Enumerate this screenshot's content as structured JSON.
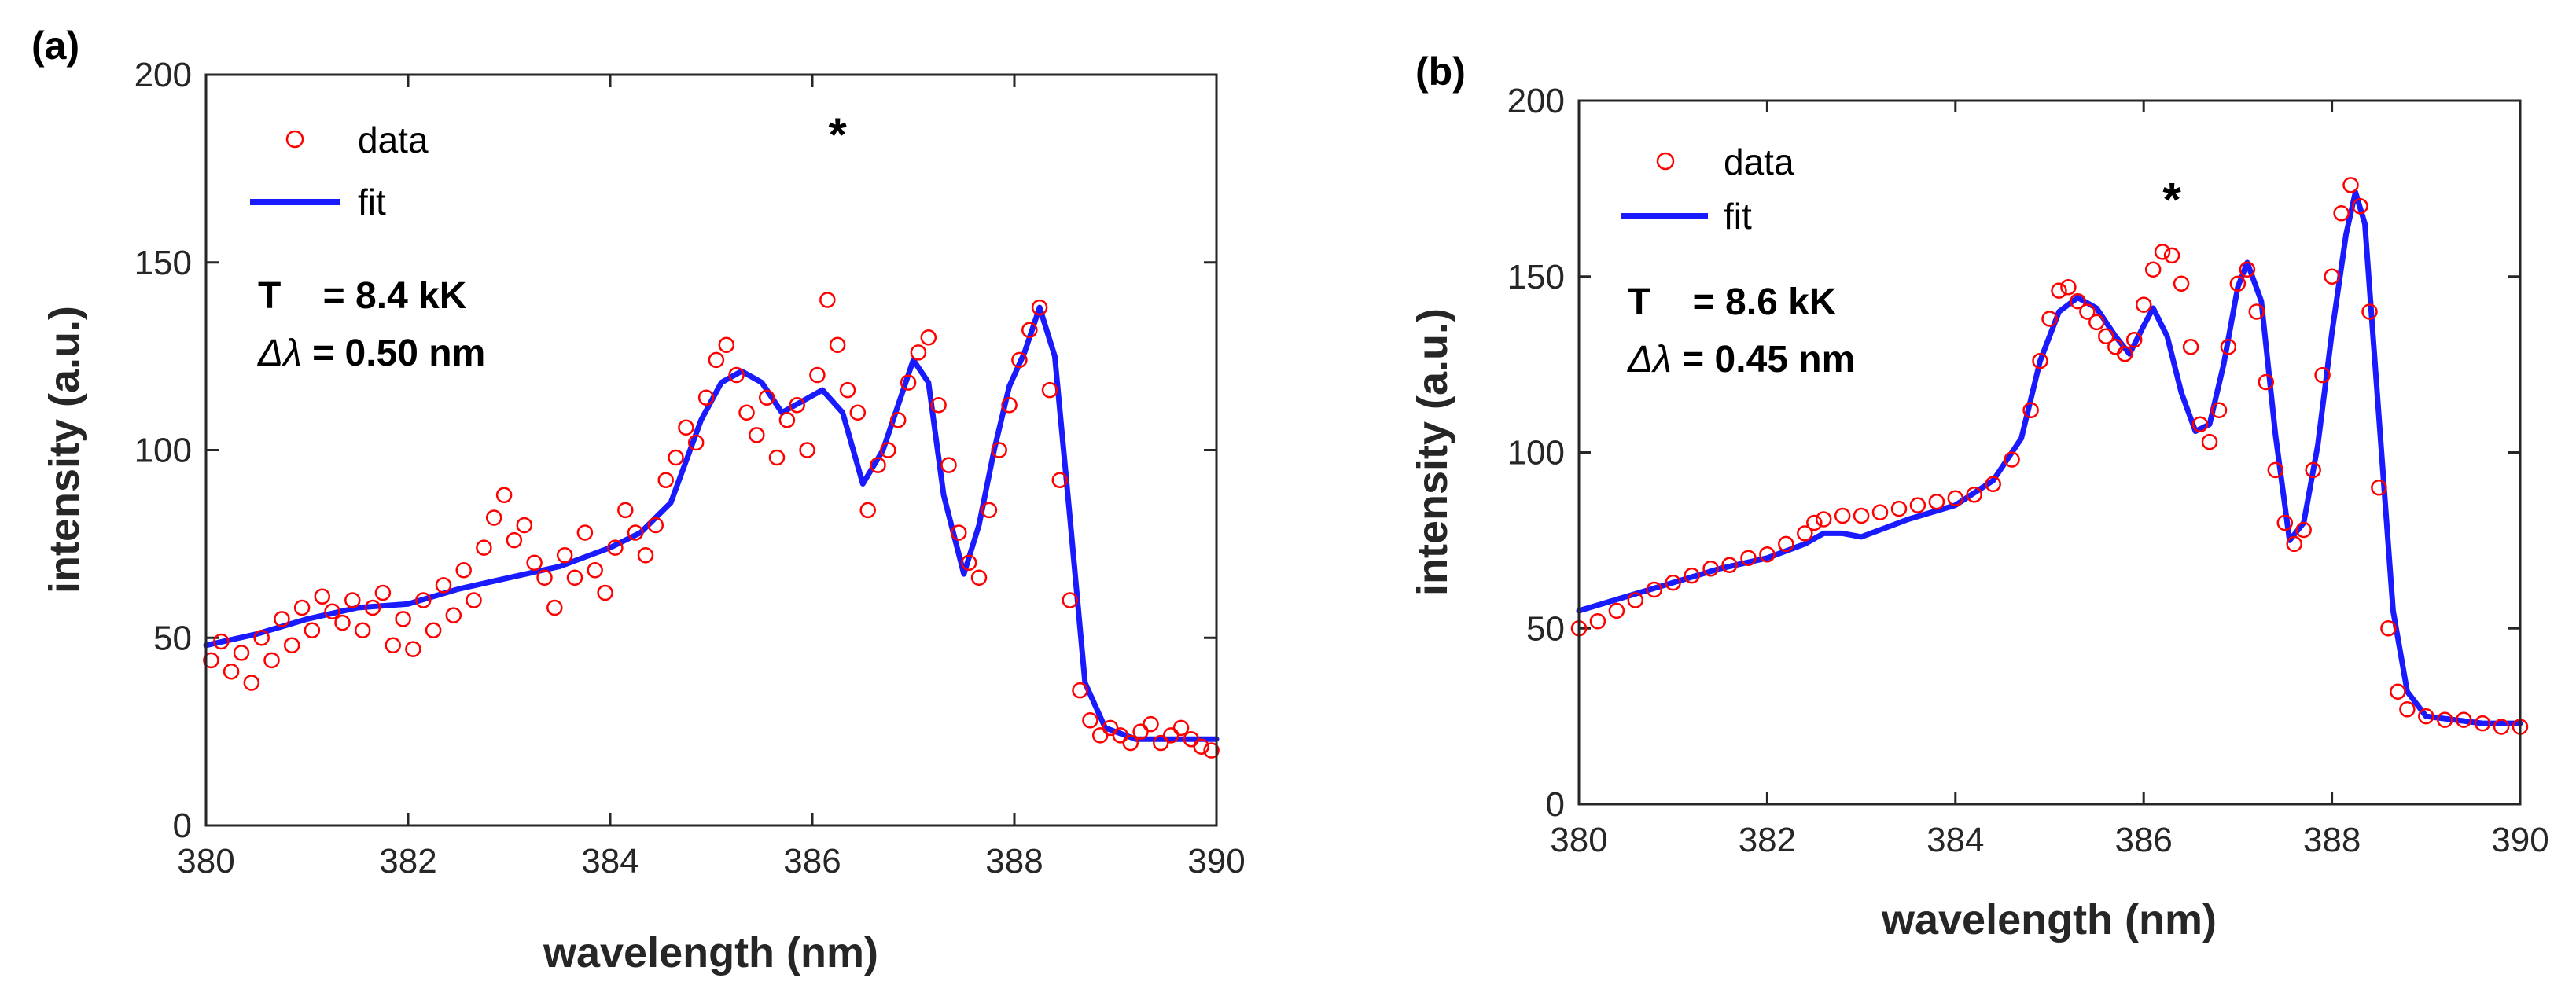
{
  "chart_data": [
    {
      "panel_label": "(a)",
      "type": "scatter",
      "xlabel": "wavelength (nm)",
      "ylabel": "intensity (a.u.)",
      "xlim": [
        380,
        390
      ],
      "ylim": [
        0,
        200
      ],
      "xticks": [
        380,
        382,
        384,
        386,
        388,
        390
      ],
      "yticks": [
        0,
        50,
        100,
        150,
        200
      ],
      "legend": {
        "location": "top-left",
        "entries": [
          "data",
          "fit"
        ]
      },
      "annotations": {
        "temperature": "T    = 8.4 kK",
        "width_prefix": "Δλ",
        "width_value": " = 0.50 nm",
        "marker": "*",
        "marker_x": 386.25,
        "marker_y": 186
      },
      "fit_curve": {
        "x": [
          380,
          380.5,
          381,
          381.5,
          382,
          382.5,
          383,
          383.5,
          384,
          384.3,
          384.6,
          384.9,
          385.1,
          385.3,
          385.5,
          385.7,
          385.9,
          386.1,
          386.3,
          386.5,
          386.7,
          386.85,
          387.0,
          387.15,
          387.3,
          387.5,
          387.65,
          387.8,
          387.95,
          388.1,
          388.25,
          388.4,
          388.55,
          388.7,
          388.9,
          389.2,
          389.6,
          390
        ],
        "y": [
          48,
          51,
          55,
          58,
          59,
          63,
          66,
          69,
          74,
          78,
          86,
          108,
          118,
          121,
          118,
          110,
          113,
          116,
          110,
          91,
          100,
          112,
          124,
          118,
          88,
          67,
          80,
          100,
          117,
          126,
          138,
          125,
          82,
          38,
          26,
          23,
          23,
          23
        ]
      },
      "series": [
        {
          "name": "data",
          "x": [
            380.05,
            380.15,
            380.25,
            380.35,
            380.45,
            380.55,
            380.65,
            380.75,
            380.85,
            380.95,
            381.05,
            381.15,
            381.25,
            381.35,
            381.45,
            381.55,
            381.65,
            381.75,
            381.85,
            381.95,
            382.05,
            382.15,
            382.25,
            382.35,
            382.45,
            382.55,
            382.65,
            382.75,
            382.85,
            382.95,
            383.05,
            383.15,
            383.25,
            383.35,
            383.45,
            383.55,
            383.65,
            383.75,
            383.85,
            383.95,
            384.05,
            384.15,
            384.25,
            384.35,
            384.45,
            384.55,
            384.65,
            384.75,
            384.85,
            384.95,
            385.05,
            385.15,
            385.25,
            385.35,
            385.45,
            385.55,
            385.65,
            385.75,
            385.85,
            385.95,
            386.05,
            386.15,
            386.25,
            386.35,
            386.45,
            386.55,
            386.65,
            386.75,
            386.85,
            386.95,
            387.05,
            387.15,
            387.25,
            387.35,
            387.45,
            387.55,
            387.65,
            387.75,
            387.85,
            387.95,
            388.05,
            388.15,
            388.25,
            388.35,
            388.45,
            388.55,
            388.65,
            388.75,
            388.85,
            388.95,
            389.05,
            389.15,
            389.25,
            389.35,
            389.45,
            389.55,
            389.65,
            389.75,
            389.85,
            389.95
          ],
          "y": [
            44,
            49,
            41,
            46,
            38,
            50,
            44,
            55,
            48,
            58,
            52,
            61,
            57,
            54,
            60,
            52,
            58,
            62,
            48,
            55,
            47,
            60,
            52,
            64,
            56,
            68,
            60,
            74,
            82,
            88,
            76,
            80,
            70,
            66,
            58,
            72,
            66,
            78,
            68,
            62,
            74,
            84,
            78,
            72,
            80,
            92,
            98,
            106,
            102,
            114,
            124,
            128,
            120,
            110,
            104,
            114,
            98,
            108,
            112,
            100,
            120,
            140,
            128,
            116,
            110,
            84,
            96,
            100,
            108,
            118,
            126,
            130,
            112,
            96,
            78,
            70,
            66,
            84,
            100,
            112,
            124,
            132,
            138,
            116,
            92,
            60,
            36,
            28,
            24,
            26,
            24,
            22,
            25,
            27,
            22,
            24,
            26,
            23,
            21,
            20
          ]
        },
        {
          "name": "fit"
        }
      ]
    },
    {
      "panel_label": "(b)",
      "type": "scatter",
      "xlabel": "wavelength (nm)",
      "ylabel": "intensity (a.u.)",
      "xlim": [
        380,
        390
      ],
      "ylim": [
        0,
        200
      ],
      "xticks": [
        380,
        382,
        384,
        386,
        388,
        390
      ],
      "yticks": [
        0,
        50,
        100,
        150,
        200
      ],
      "legend": {
        "location": "top-left",
        "entries": [
          "data",
          "fit"
        ]
      },
      "annotations": {
        "temperature": "T    = 8.6 kK",
        "width_prefix": "Δλ",
        "width_value": " = 0.45 nm",
        "marker": "*",
        "marker_x": 386.3,
        "marker_y": 174
      },
      "fit_curve": {
        "x": [
          380,
          380.5,
          381,
          381.5,
          382,
          382.4,
          382.6,
          382.8,
          383.0,
          383.5,
          384,
          384.4,
          384.7,
          384.9,
          385.1,
          385.3,
          385.5,
          385.7,
          385.85,
          386.0,
          386.1,
          386.25,
          386.4,
          386.55,
          386.7,
          386.85,
          387.0,
          387.1,
          387.25,
          387.4,
          387.55,
          387.7,
          387.85,
          388.0,
          388.15,
          388.25,
          388.35,
          388.5,
          388.65,
          388.8,
          389.0,
          389.3,
          389.6,
          390
        ],
        "y": [
          55,
          59,
          63,
          67,
          70,
          74,
          77,
          77,
          76,
          81,
          85,
          92,
          104,
          126,
          140,
          144,
          141,
          133,
          128,
          136,
          141,
          133,
          117,
          106,
          108,
          125,
          147,
          154,
          143,
          105,
          75,
          80,
          102,
          134,
          162,
          174,
          165,
          110,
          55,
          32,
          25,
          24,
          23,
          23
        ]
      },
      "series": [
        {
          "name": "data",
          "x": [
            380.0,
            380.2,
            380.4,
            380.6,
            380.8,
            381.0,
            381.2,
            381.4,
            381.6,
            381.8,
            382.0,
            382.2,
            382.4,
            382.5,
            382.6,
            382.8,
            383.0,
            383.2,
            383.4,
            383.6,
            383.8,
            384.0,
            384.2,
            384.4,
            384.6,
            384.8,
            384.9,
            385.0,
            385.1,
            385.2,
            385.3,
            385.4,
            385.5,
            385.6,
            385.7,
            385.8,
            385.9,
            386.0,
            386.1,
            386.2,
            386.3,
            386.4,
            386.5,
            386.6,
            386.7,
            386.8,
            386.9,
            387.0,
            387.1,
            387.2,
            387.3,
            387.4,
            387.5,
            387.6,
            387.7,
            387.8,
            387.9,
            388.0,
            388.1,
            388.2,
            388.3,
            388.4,
            388.5,
            388.6,
            388.7,
            388.8,
            389.0,
            389.2,
            389.4,
            389.6,
            389.8,
            390.0
          ],
          "y": [
            50,
            52,
            55,
            58,
            61,
            63,
            65,
            67,
            68,
            70,
            71,
            74,
            77,
            80,
            81,
            82,
            82,
            83,
            84,
            85,
            86,
            87,
            88,
            91,
            98,
            112,
            126,
            138,
            146,
            147,
            143,
            140,
            137,
            133,
            130,
            128,
            132,
            142,
            152,
            157,
            156,
            148,
            130,
            108,
            103,
            112,
            130,
            148,
            152,
            140,
            120,
            95,
            80,
            74,
            78,
            95,
            122,
            150,
            168,
            176,
            170,
            140,
            90,
            50,
            32,
            27,
            25,
            24,
            24,
            23,
            22,
            22
          ]
        },
        {
          "name": "fit"
        }
      ]
    }
  ]
}
